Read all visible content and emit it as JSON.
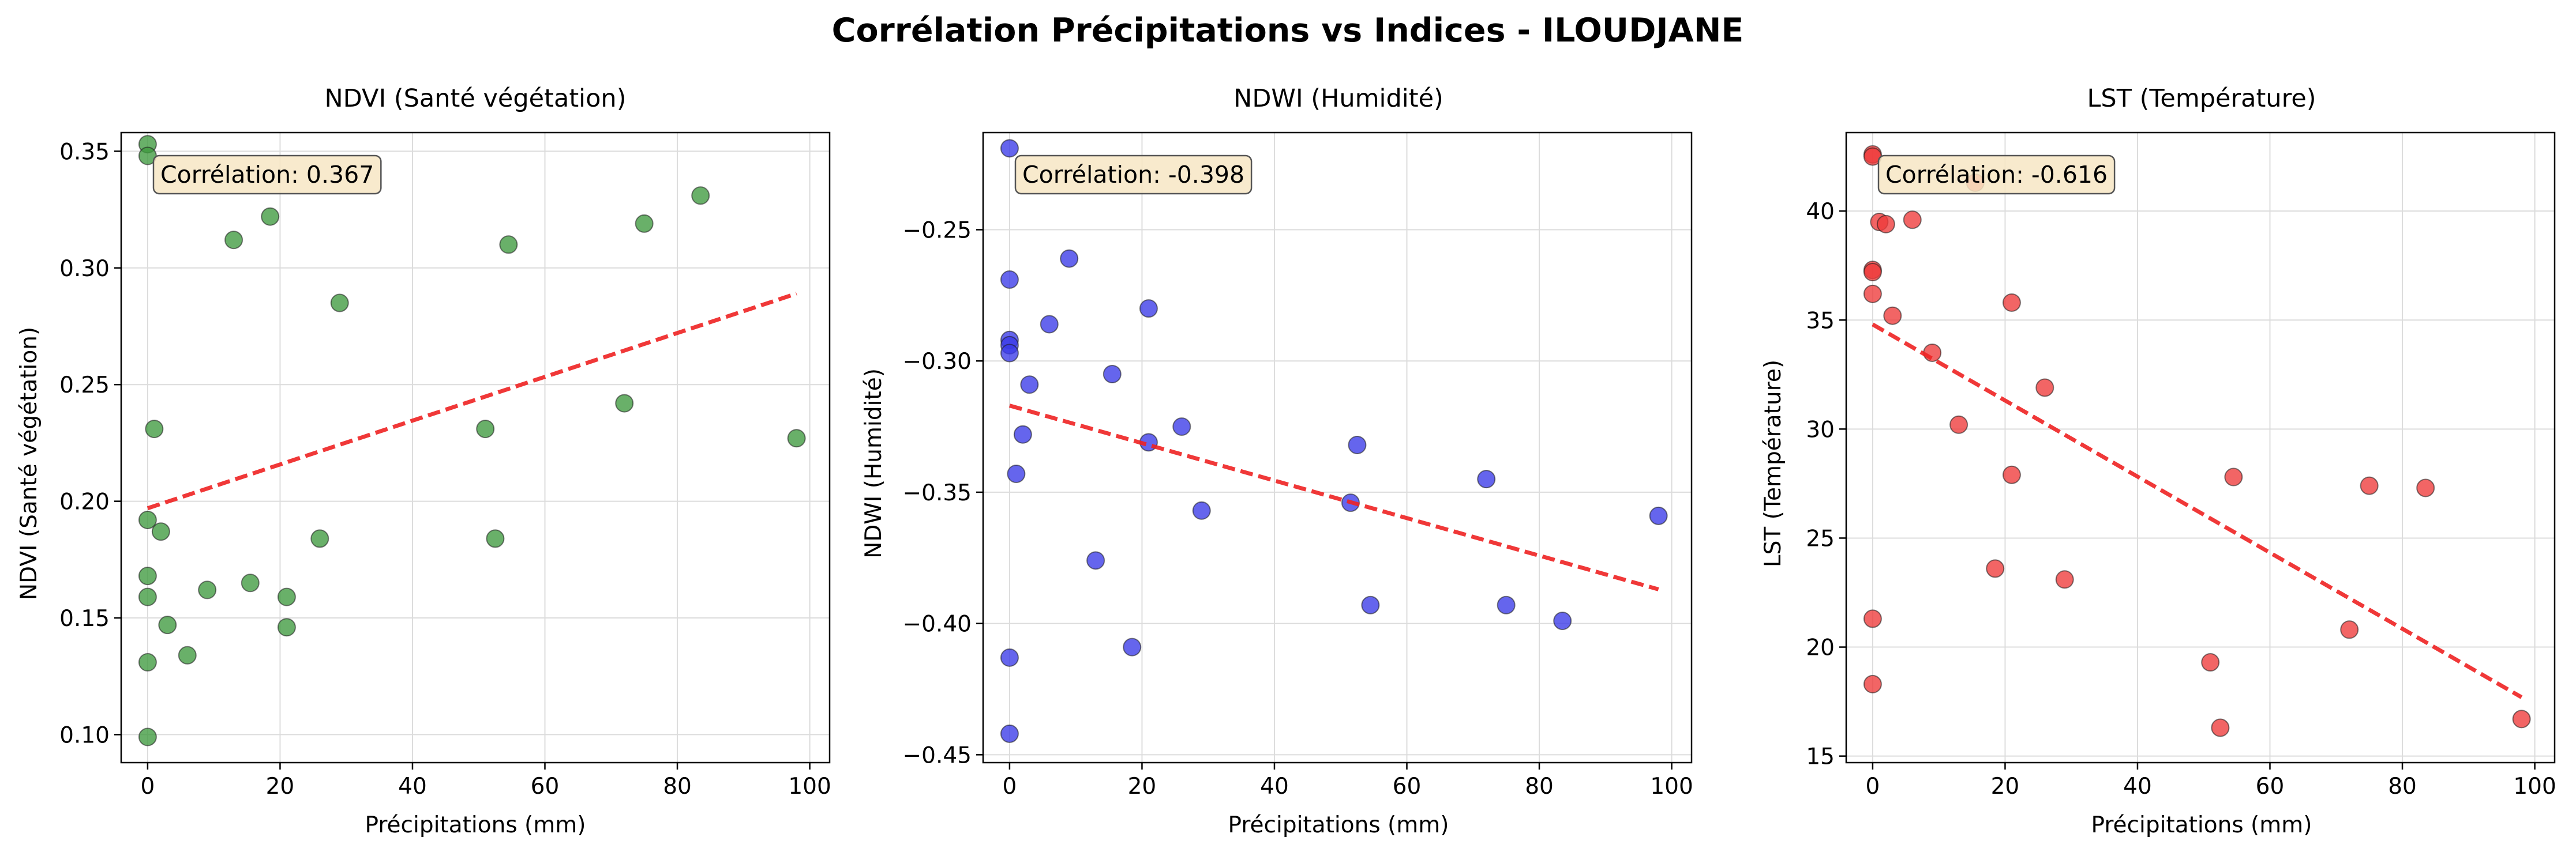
{
  "figure_title": "Corrélation Précipitations vs Indices - ILOUDJANE",
  "chart_data": [
    {
      "type": "scatter",
      "title": "NDVI (Santé végétation)",
      "xlabel": "Précipitations (mm)",
      "ylabel": "NDVI (Santé végétation)",
      "annotation": "Corrélation: 0.367",
      "xlim": [
        -4,
        103
      ],
      "ylim": [
        0.088,
        0.358
      ],
      "xticks": [
        0,
        20,
        40,
        60,
        80,
        100
      ],
      "yticks": [
        0.1,
        0.15,
        0.2,
        0.25,
        0.3,
        0.35
      ],
      "ytick_labels": [
        "0.10",
        "0.15",
        "0.20",
        "0.25",
        "0.30",
        "0.35"
      ],
      "grid": true,
      "point_color": "#3f9a3f",
      "trend_color": "#ee2222",
      "points": [
        {
          "x": 0,
          "y": 0.353
        },
        {
          "x": 0,
          "y": 0.348
        },
        {
          "x": 0,
          "y": 0.192
        },
        {
          "x": 0,
          "y": 0.168
        },
        {
          "x": 0,
          "y": 0.159
        },
        {
          "x": 0,
          "y": 0.131
        },
        {
          "x": 0,
          "y": 0.099
        },
        {
          "x": 1,
          "y": 0.231
        },
        {
          "x": 2,
          "y": 0.187
        },
        {
          "x": 3,
          "y": 0.147
        },
        {
          "x": 6,
          "y": 0.134
        },
        {
          "x": 9,
          "y": 0.162
        },
        {
          "x": 13,
          "y": 0.312
        },
        {
          "x": 15.5,
          "y": 0.165
        },
        {
          "x": 18.5,
          "y": 0.322
        },
        {
          "x": 21,
          "y": 0.159
        },
        {
          "x": 21,
          "y": 0.146
        },
        {
          "x": 26,
          "y": 0.184
        },
        {
          "x": 29,
          "y": 0.285
        },
        {
          "x": 51,
          "y": 0.231
        },
        {
          "x": 52.5,
          "y": 0.184
        },
        {
          "x": 54.5,
          "y": 0.31
        },
        {
          "x": 72,
          "y": 0.242
        },
        {
          "x": 75,
          "y": 0.319
        },
        {
          "x": 83.5,
          "y": 0.331
        },
        {
          "x": 98,
          "y": 0.227
        }
      ],
      "trend": [
        {
          "x": 0,
          "y": 0.197
        },
        {
          "x": 98,
          "y": 0.289
        }
      ]
    },
    {
      "type": "scatter",
      "title": "NDWI (Humidité)",
      "xlabel": "Précipitations (mm)",
      "ylabel": "NDWI (Humidité)",
      "annotation": "Corrélation: -0.398",
      "xlim": [
        -4,
        103
      ],
      "ylim": [
        -0.453,
        -0.213
      ],
      "xticks": [
        0,
        20,
        40,
        60,
        80,
        100
      ],
      "yticks": [
        -0.45,
        -0.4,
        -0.35,
        -0.3,
        -0.25
      ],
      "ytick_labels": [
        "−0.45",
        "−0.40",
        "−0.35",
        "−0.30",
        "−0.25"
      ],
      "grid": true,
      "point_color": "#3a3ae8",
      "trend_color": "#ee2222",
      "points": [
        {
          "x": 0,
          "y": -0.219
        },
        {
          "x": 0,
          "y": -0.269
        },
        {
          "x": 0,
          "y": -0.292
        },
        {
          "x": 0,
          "y": -0.294
        },
        {
          "x": 0,
          "y": -0.297
        },
        {
          "x": 0,
          "y": -0.413
        },
        {
          "x": 0,
          "y": -0.442
        },
        {
          "x": 1,
          "y": -0.343
        },
        {
          "x": 2,
          "y": -0.328
        },
        {
          "x": 3,
          "y": -0.309
        },
        {
          "x": 6,
          "y": -0.286
        },
        {
          "x": 9,
          "y": -0.261
        },
        {
          "x": 13,
          "y": -0.376
        },
        {
          "x": 15.5,
          "y": -0.305
        },
        {
          "x": 18.5,
          "y": -0.409
        },
        {
          "x": 21,
          "y": -0.331
        },
        {
          "x": 21,
          "y": -0.28
        },
        {
          "x": 26,
          "y": -0.325
        },
        {
          "x": 29,
          "y": -0.357
        },
        {
          "x": 51.5,
          "y": -0.354
        },
        {
          "x": 52.5,
          "y": -0.332
        },
        {
          "x": 54.5,
          "y": -0.393
        },
        {
          "x": 72,
          "y": -0.345
        },
        {
          "x": 75,
          "y": -0.393
        },
        {
          "x": 83.5,
          "y": -0.399
        },
        {
          "x": 98,
          "y": -0.359
        }
      ],
      "trend": [
        {
          "x": 0,
          "y": -0.317
        },
        {
          "x": 98,
          "y": -0.387
        }
      ]
    },
    {
      "type": "scatter",
      "title": "LST (Température)",
      "xlabel": "Précipitations (mm)",
      "ylabel": "LST (Température)",
      "annotation": "Corrélation: -0.616",
      "xlim": [
        -4,
        103
      ],
      "ylim": [
        14.7,
        43.6
      ],
      "xticks": [
        0,
        20,
        40,
        60,
        80,
        100
      ],
      "yticks": [
        15,
        20,
        25,
        30,
        35,
        40
      ],
      "ytick_labels": [
        "15",
        "20",
        "25",
        "30",
        "35",
        "40"
      ],
      "grid": true,
      "point_color": "#ee3a3a",
      "trend_color": "#ee2222",
      "points": [
        {
          "x": 0,
          "y": 42.6
        },
        {
          "x": 0,
          "y": 42.5
        },
        {
          "x": 0,
          "y": 37.3
        },
        {
          "x": 0,
          "y": 37.2
        },
        {
          "x": 0,
          "y": 36.2
        },
        {
          "x": 0,
          "y": 21.3
        },
        {
          "x": 0,
          "y": 18.3
        },
        {
          "x": 1,
          "y": 39.5
        },
        {
          "x": 2,
          "y": 39.4
        },
        {
          "x": 3,
          "y": 35.2
        },
        {
          "x": 6,
          "y": 39.6
        },
        {
          "x": 9,
          "y": 33.5
        },
        {
          "x": 13,
          "y": 30.2
        },
        {
          "x": 15.5,
          "y": 41.3
        },
        {
          "x": 18.5,
          "y": 23.6
        },
        {
          "x": 21,
          "y": 27.9
        },
        {
          "x": 21,
          "y": 35.8
        },
        {
          "x": 26,
          "y": 31.9
        },
        {
          "x": 29,
          "y": 23.1
        },
        {
          "x": 51,
          "y": 19.3
        },
        {
          "x": 52.5,
          "y": 16.3
        },
        {
          "x": 54.5,
          "y": 27.8
        },
        {
          "x": 72,
          "y": 20.8
        },
        {
          "x": 75,
          "y": 27.4
        },
        {
          "x": 83.5,
          "y": 27.3
        },
        {
          "x": 98,
          "y": 16.7
        }
      ],
      "trend": [
        {
          "x": 0,
          "y": 34.8
        },
        {
          "x": 98,
          "y": 17.7
        }
      ]
    }
  ]
}
